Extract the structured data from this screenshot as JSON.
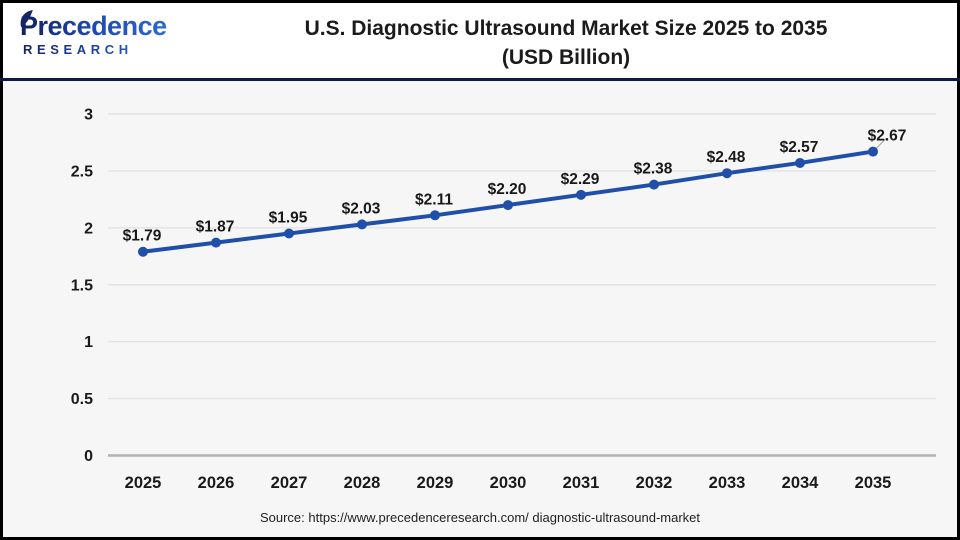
{
  "header": {
    "logo": {
      "brand_top": "Precedence",
      "brand_bottom": "RESEARCH"
    },
    "title_line1": "U.S. Diagnostic Ultrasound Market Size 2025 to 2035",
    "title_line2": "(USD Billion)"
  },
  "chart_data": {
    "type": "line",
    "title": "U.S. Diagnostic Ultrasound Market Size 2025 to 2035 (USD Billion)",
    "categories": [
      "2025",
      "2026",
      "2027",
      "2028",
      "2029",
      "2030",
      "2031",
      "2032",
      "2033",
      "2034",
      "2035"
    ],
    "values": [
      1.79,
      1.87,
      1.95,
      2.03,
      2.11,
      2.2,
      2.29,
      2.38,
      2.48,
      2.57,
      2.67
    ],
    "point_labels": [
      "$1.79",
      "$1.87",
      "$1.95",
      "$2.03",
      "$2.11",
      "$2.20",
      "$2.29",
      "$2.38",
      "$2.48",
      "$2.57",
      "$2.67"
    ],
    "xlabel": "",
    "ylabel": "",
    "ylim": [
      0,
      3
    ],
    "yticks": [
      0,
      0.5,
      1,
      1.5,
      2,
      2.5,
      3
    ],
    "ytick_labels": [
      "0",
      "0.5",
      "1",
      "1.5",
      "2",
      "2.5",
      "3"
    ],
    "grid": true,
    "legend_position": "none",
    "line_color": "#1f4fa8",
    "marker_color": "#1f4fa8",
    "data_label_color": "#191919",
    "tick_label_color": "#1a1a1a",
    "grid_color": "#e3e3e3",
    "axis_line_color": "#b2b2b2",
    "leader_line_color": "#9a9a9a"
  },
  "footer": {
    "source": "Source: https://www.precedenceresearch.com/ diagnostic-ultrasound-market"
  },
  "colors": {
    "frame_border": "#000000",
    "header_divider": "#10184a",
    "chart_background": "#f6f6f6",
    "header_background": "#ffffff",
    "logo_navy": "#16246a",
    "logo_blue": "#2e6fd8"
  }
}
